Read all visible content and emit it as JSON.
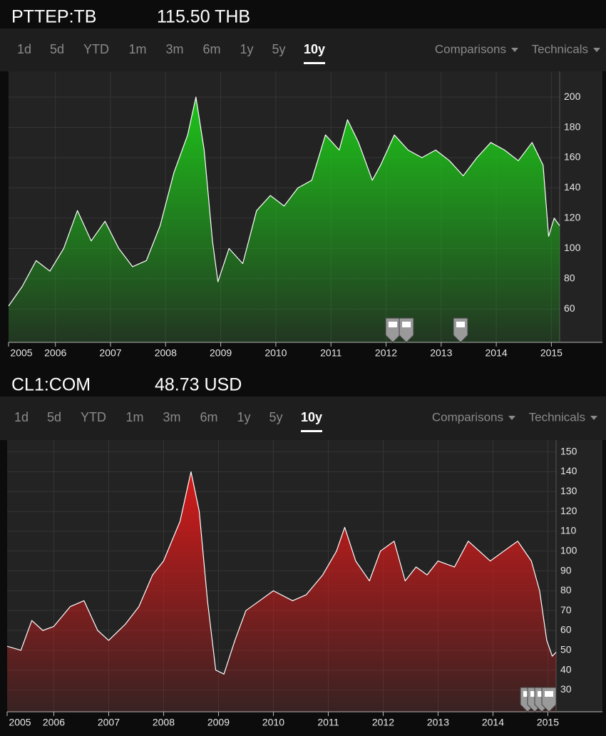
{
  "chart_data": [
    {
      "type": "area",
      "title": "PTTEP:TB",
      "subtitle": "115.50 THB",
      "tabs": [
        "1d",
        "5d",
        "YTD",
        "1m",
        "3m",
        "6m",
        "1y",
        "5y",
        "10y"
      ],
      "active_tab": 8,
      "menus": [
        "Comparisons",
        "Technicals"
      ],
      "color": "#1ec41a",
      "grid": true,
      "y_axis_side": "right",
      "x": [
        2005.15,
        2005.4,
        2005.65,
        2005.9,
        2006.15,
        2006.4,
        2006.65,
        2006.9,
        2007.15,
        2007.4,
        2007.65,
        2007.9,
        2008.15,
        2008.4,
        2008.55,
        2008.7,
        2008.85,
        2008.95,
        2009.15,
        2009.4,
        2009.65,
        2009.9,
        2010.15,
        2010.4,
        2010.65,
        2010.9,
        2011.15,
        2011.3,
        2011.5,
        2011.75,
        2011.9,
        2012.15,
        2012.4,
        2012.65,
        2012.9,
        2013.15,
        2013.4,
        2013.65,
        2013.9,
        2014.15,
        2014.4,
        2014.65,
        2014.85,
        2014.95,
        2015.05,
        2015.15
      ],
      "values": [
        62,
        75,
        92,
        85,
        100,
        125,
        105,
        118,
        100,
        88,
        92,
        115,
        150,
        175,
        200,
        165,
        105,
        78,
        100,
        90,
        125,
        135,
        128,
        140,
        145,
        175,
        165,
        185,
        170,
        145,
        155,
        175,
        165,
        160,
        165,
        158,
        148,
        160,
        170,
        165,
        158,
        170,
        155,
        108,
        120,
        115
      ],
      "xlim": [
        2005.15,
        2015.15
      ],
      "xticks": [
        2005,
        2006,
        2007,
        2008,
        2009,
        2010,
        2011,
        2012,
        2013,
        2014,
        2015
      ],
      "ylim": [
        38,
        217
      ],
      "yticks": [
        60,
        80,
        100,
        120,
        140,
        160,
        180,
        200
      ]
    },
    {
      "type": "area",
      "title": "CL1:COM",
      "subtitle": "48.73 USD",
      "tabs": [
        "1d",
        "5d",
        "YTD",
        "1m",
        "3m",
        "6m",
        "1y",
        "5y",
        "10y"
      ],
      "active_tab": 8,
      "menus": [
        "Comparisons",
        "Technicals"
      ],
      "color": "#d41a1a",
      "grid": true,
      "y_axis_side": "right",
      "x": [
        2005.15,
        2005.4,
        2005.6,
        2005.8,
        2006.0,
        2006.3,
        2006.55,
        2006.8,
        2007.0,
        2007.3,
        2007.55,
        2007.8,
        2008.0,
        2008.3,
        2008.5,
        2008.65,
        2008.8,
        2008.95,
        2009.1,
        2009.3,
        2009.5,
        2009.75,
        2010.0,
        2010.35,
        2010.6,
        2010.9,
        2011.15,
        2011.3,
        2011.5,
        2011.75,
        2011.95,
        2012.2,
        2012.4,
        2012.6,
        2012.8,
        2013.0,
        2013.3,
        2013.55,
        2013.75,
        2013.95,
        2014.2,
        2014.45,
        2014.7,
        2014.85,
        2014.98,
        2015.08,
        2015.15
      ],
      "values": [
        52,
        50,
        65,
        60,
        62,
        72,
        75,
        60,
        55,
        63,
        72,
        88,
        95,
        115,
        140,
        120,
        75,
        40,
        38,
        55,
        70,
        75,
        80,
        75,
        78,
        88,
        100,
        112,
        95,
        85,
        100,
        105,
        85,
        92,
        88,
        95,
        92,
        105,
        100,
        95,
        100,
        105,
        95,
        80,
        55,
        47,
        49
      ],
      "xlim": [
        2005.15,
        2015.15
      ],
      "xticks": [
        2005,
        2006,
        2007,
        2008,
        2009,
        2010,
        2011,
        2012,
        2013,
        2014,
        2015
      ],
      "ylim": [
        19,
        156
      ],
      "yticks": [
        30,
        40,
        50,
        60,
        70,
        80,
        90,
        100,
        110,
        120,
        130,
        140,
        150
      ]
    }
  ]
}
